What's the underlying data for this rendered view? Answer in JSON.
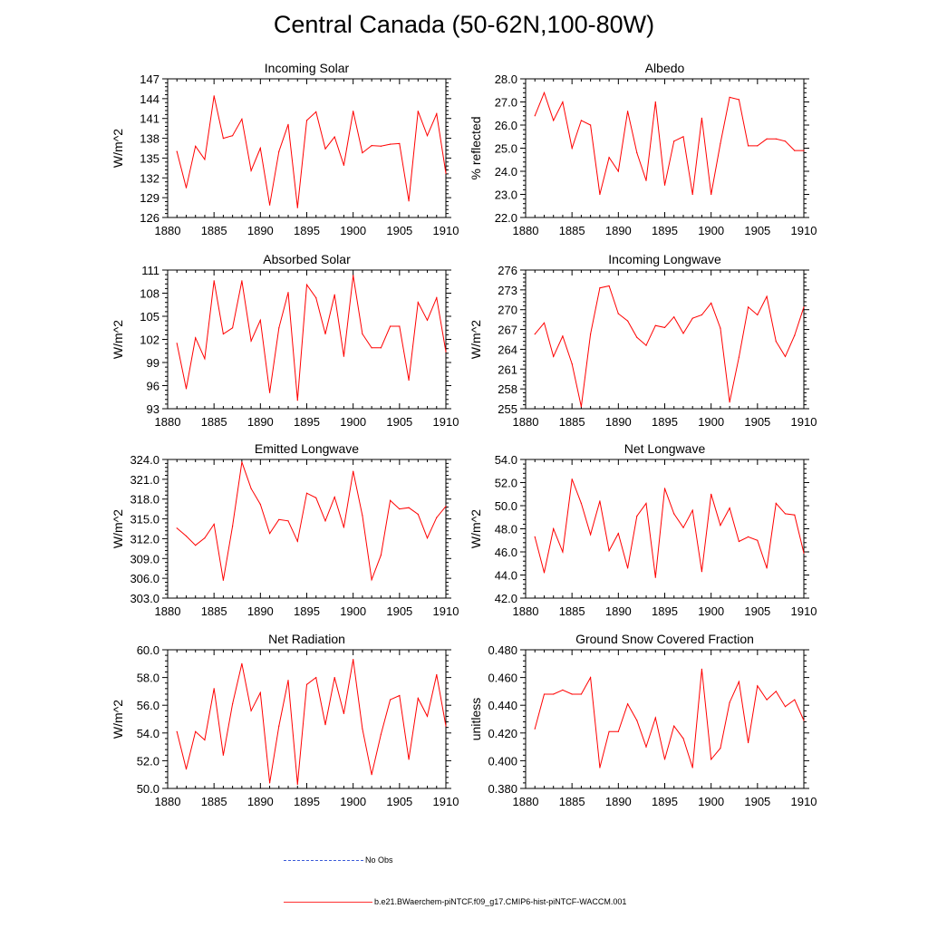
{
  "title": "Central Canada (50-62N,100-80W)",
  "colors": {
    "model": "#ff0000",
    "obs": "#3b5bd9",
    "axis": "#000000"
  },
  "legend": {
    "obs_label": "No Obs",
    "model_label": "b.e21.BWaerchem-piNTCF.f09_g17.CMIP6-hist-piNTCF-WACCM.001"
  },
  "chart_data": [
    {
      "type": "line",
      "title": "Incoming Solar",
      "ylabel": "W/m^2",
      "xlim": [
        1880,
        1910
      ],
      "ylim": [
        126,
        147
      ],
      "xticks": [
        "1880",
        "1885",
        "1890",
        "1895",
        "1900",
        "1905",
        "1910"
      ],
      "yticks": [
        "126",
        "129",
        "132",
        "135",
        "138",
        "141",
        "144",
        "147"
      ],
      "x": [
        1881,
        1882,
        1883,
        1884,
        1885,
        1886,
        1887,
        1888,
        1889,
        1890,
        1891,
        1892,
        1893,
        1894,
        1895,
        1896,
        1897,
        1898,
        1899,
        1900,
        1901,
        1902,
        1903,
        1904,
        1905,
        1906,
        1907,
        1908,
        1909,
        1910
      ],
      "series": [
        {
          "values": [
            136.0,
            130.5,
            136.8,
            134.8,
            144.4,
            138.0,
            138.4,
            140.9,
            133.1,
            136.5,
            127.9,
            136.0,
            140.1,
            127.5,
            140.7,
            142.0,
            136.4,
            138.2,
            133.9,
            142.1,
            135.8,
            136.9,
            136.8,
            137.1,
            137.2,
            128.5,
            142.1,
            138.4,
            141.7,
            132.7
          ]
        }
      ]
    },
    {
      "type": "line",
      "title": "Albedo",
      "ylabel": "% reflected",
      "xlim": [
        1880,
        1910
      ],
      "ylim": [
        22.0,
        28.0
      ],
      "xticks": [
        "1880",
        "1885",
        "1890",
        "1895",
        "1900",
        "1905",
        "1910"
      ],
      "yticks": [
        "22.0",
        "23.0",
        "24.0",
        "25.0",
        "26.0",
        "27.0",
        "28.0"
      ],
      "x": [
        1881,
        1882,
        1883,
        1884,
        1885,
        1886,
        1887,
        1888,
        1889,
        1890,
        1891,
        1892,
        1893,
        1894,
        1895,
        1896,
        1897,
        1898,
        1899,
        1900,
        1901,
        1902,
        1903,
        1904,
        1905,
        1906,
        1907,
        1908,
        1909,
        1910
      ],
      "series": [
        {
          "values": [
            26.4,
            27.4,
            26.2,
            27.0,
            25.0,
            26.2,
            26.0,
            23.0,
            24.6,
            24.0,
            26.6,
            24.8,
            23.6,
            27.0,
            23.4,
            25.3,
            25.5,
            23.0,
            26.3,
            23.0,
            25.2,
            27.2,
            27.1,
            25.1,
            25.1,
            25.4,
            25.4,
            25.3,
            24.9,
            24.9
          ]
        }
      ]
    },
    {
      "type": "line",
      "title": "Absorbed Solar",
      "ylabel": "W/m^2",
      "xlim": [
        1880,
        1910
      ],
      "ylim": [
        93,
        111
      ],
      "xticks": [
        "1880",
        "1885",
        "1890",
        "1895",
        "1900",
        "1905",
        "1910"
      ],
      "yticks": [
        "93",
        "96",
        "99",
        "102",
        "105",
        "108",
        "111"
      ],
      "x": [
        1881,
        1882,
        1883,
        1884,
        1885,
        1886,
        1887,
        1888,
        1889,
        1890,
        1891,
        1892,
        1893,
        1894,
        1895,
        1896,
        1897,
        1898,
        1899,
        1900,
        1901,
        1902,
        1903,
        1904,
        1905,
        1906,
        1907,
        1908,
        1909,
        1910
      ],
      "series": [
        {
          "values": [
            101.5,
            95.6,
            102.2,
            99.5,
            109.6,
            102.7,
            103.5,
            109.6,
            101.8,
            104.5,
            95.1,
            103.5,
            108.1,
            94.1,
            109.1,
            107.4,
            102.7,
            107.8,
            99.8,
            110.3,
            102.7,
            100.9,
            100.9,
            103.7,
            103.7,
            96.7,
            106.8,
            104.5,
            107.4,
            100.4
          ]
        }
      ]
    },
    {
      "type": "line",
      "title": "Incoming Longwave",
      "ylabel": "W/m^2",
      "xlim": [
        1880,
        1910
      ],
      "ylim": [
        255,
        276
      ],
      "xticks": [
        "1880",
        "1885",
        "1890",
        "1895",
        "1900",
        "1905",
        "1910"
      ],
      "yticks": [
        "255",
        "258",
        "261",
        "264",
        "267",
        "270",
        "273",
        "276"
      ],
      "x": [
        1881,
        1882,
        1883,
        1884,
        1885,
        1886,
        1887,
        1888,
        1889,
        1890,
        1891,
        1892,
        1893,
        1894,
        1895,
        1896,
        1897,
        1898,
        1899,
        1900,
        1901,
        1902,
        1903,
        1904,
        1905,
        1906,
        1907,
        1908,
        1909,
        1910
      ],
      "series": [
        {
          "values": [
            266.3,
            268.0,
            262.9,
            266.0,
            261.8,
            255.3,
            266.3,
            273.3,
            273.6,
            269.4,
            268.3,
            265.8,
            264.6,
            267.6,
            267.3,
            268.9,
            266.4,
            268.7,
            269.2,
            271.0,
            267.2,
            256.0,
            262.8,
            270.4,
            269.2,
            272.0,
            265.2,
            262.9,
            266.1,
            270.4
          ]
        }
      ]
    },
    {
      "type": "line",
      "title": "Emitted Longwave",
      "ylabel": "W/m^2",
      "xlim": [
        1880,
        1910
      ],
      "ylim": [
        303.0,
        324.0
      ],
      "xticks": [
        "1880",
        "1885",
        "1890",
        "1895",
        "1900",
        "1905",
        "1910"
      ],
      "yticks": [
        "303.0",
        "306.0",
        "309.0",
        "312.0",
        "315.0",
        "318.0",
        "321.0",
        "324.0"
      ],
      "x": [
        1881,
        1882,
        1883,
        1884,
        1885,
        1886,
        1887,
        1888,
        1889,
        1890,
        1891,
        1892,
        1893,
        1894,
        1895,
        1896,
        1897,
        1898,
        1899,
        1900,
        1901,
        1902,
        1903,
        1904,
        1905,
        1906,
        1907,
        1908,
        1909,
        1910
      ],
      "series": [
        {
          "values": [
            313.6,
            312.4,
            311.0,
            312.1,
            314.2,
            305.7,
            313.9,
            323.6,
            319.6,
            317.2,
            312.8,
            314.9,
            314.7,
            311.6,
            318.9,
            318.2,
            314.7,
            318.3,
            313.7,
            322.2,
            315.5,
            305.8,
            309.5,
            317.8,
            316.5,
            316.7,
            315.7,
            312.1,
            315.2,
            316.9
          ]
        }
      ]
    },
    {
      "type": "line",
      "title": "Net Longwave",
      "ylabel": "W/m^2",
      "xlim": [
        1880,
        1910
      ],
      "ylim": [
        42.0,
        54.0
      ],
      "xticks": [
        "1880",
        "1885",
        "1890",
        "1895",
        "1900",
        "1905",
        "1910"
      ],
      "yticks": [
        "42.0",
        "44.0",
        "46.0",
        "48.0",
        "50.0",
        "52.0",
        "54.0"
      ],
      "x": [
        1881,
        1882,
        1883,
        1884,
        1885,
        1886,
        1887,
        1888,
        1889,
        1890,
        1891,
        1892,
        1893,
        1894,
        1895,
        1896,
        1897,
        1898,
        1899,
        1900,
        1901,
        1902,
        1903,
        1904,
        1905,
        1906,
        1907,
        1908,
        1909,
        1910
      ],
      "series": [
        {
          "values": [
            47.3,
            44.2,
            48.0,
            46.0,
            52.3,
            50.2,
            47.5,
            50.4,
            46.1,
            47.6,
            44.6,
            49.1,
            50.2,
            43.8,
            51.5,
            49.3,
            48.1,
            49.6,
            44.3,
            51.0,
            48.3,
            49.8,
            46.9,
            47.3,
            47.0,
            44.6,
            50.2,
            49.3,
            49.2,
            45.9
          ]
        }
      ]
    },
    {
      "type": "line",
      "title": "Net Radiation",
      "ylabel": "W/m^2",
      "xlim": [
        1880,
        1910
      ],
      "ylim": [
        50.0,
        60.0
      ],
      "xticks": [
        "1880",
        "1885",
        "1890",
        "1895",
        "1900",
        "1905",
        "1910"
      ],
      "yticks": [
        "50.0",
        "52.0",
        "54.0",
        "56.0",
        "58.0",
        "60.0"
      ],
      "x": [
        1881,
        1882,
        1883,
        1884,
        1885,
        1886,
        1887,
        1888,
        1889,
        1890,
        1891,
        1892,
        1893,
        1894,
        1895,
        1896,
        1897,
        1898,
        1899,
        1900,
        1901,
        1902,
        1903,
        1904,
        1905,
        1906,
        1907,
        1908,
        1909,
        1910
      ],
      "series": [
        {
          "values": [
            54.1,
            51.4,
            54.1,
            53.5,
            57.2,
            52.4,
            56.1,
            59.0,
            55.6,
            56.9,
            50.4,
            54.5,
            57.8,
            50.3,
            57.5,
            58.0,
            54.6,
            58.0,
            55.4,
            59.3,
            54.3,
            51.0,
            53.9,
            56.4,
            56.7,
            52.1,
            56.5,
            55.2,
            58.2,
            54.5
          ]
        }
      ]
    },
    {
      "type": "line",
      "title": "Ground Snow Covered Fraction",
      "ylabel": "unitless",
      "xlim": [
        1880,
        1910
      ],
      "ylim": [
        0.38,
        0.48
      ],
      "xticks": [
        "1880",
        "1885",
        "1890",
        "1895",
        "1900",
        "1905",
        "1910"
      ],
      "yticks": [
        "0.380",
        "0.400",
        "0.420",
        "0.440",
        "0.460",
        "0.480"
      ],
      "x": [
        1881,
        1882,
        1883,
        1884,
        1885,
        1886,
        1887,
        1888,
        1889,
        1890,
        1891,
        1892,
        1893,
        1894,
        1895,
        1896,
        1897,
        1898,
        1899,
        1900,
        1901,
        1902,
        1903,
        1904,
        1905,
        1906,
        1907,
        1908,
        1909,
        1910
      ],
      "series": [
        {
          "values": [
            0.423,
            0.448,
            0.448,
            0.451,
            0.448,
            0.448,
            0.46,
            0.395,
            0.421,
            0.421,
            0.441,
            0.429,
            0.41,
            0.431,
            0.401,
            0.425,
            0.416,
            0.395,
            0.466,
            0.401,
            0.409,
            0.442,
            0.457,
            0.413,
            0.454,
            0.444,
            0.45,
            0.439,
            0.444,
            0.429
          ]
        }
      ]
    }
  ]
}
